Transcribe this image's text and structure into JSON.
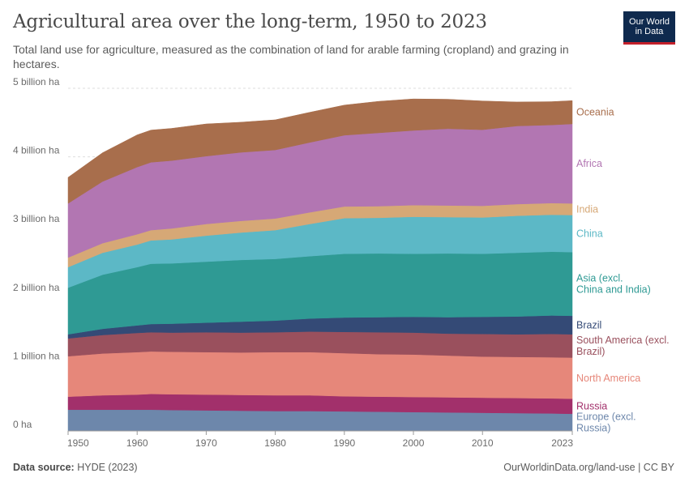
{
  "header": {
    "title": "Agricultural area over the long-term, 1950 to 2023",
    "subtitle": "Total land use for agriculture, measured as the combination of land for arable farming (cropland) and grazing in hectares.",
    "logo_line1": "Our World",
    "logo_line2": "in Data"
  },
  "footer": {
    "source_label": "Data source:",
    "source_value": "HYDE (2023)",
    "url": "OurWorldinData.org/land-use | CC BY"
  },
  "chart_data": {
    "type": "area",
    "stacked": true,
    "x": [
      1950,
      1955,
      1960,
      1962,
      1965,
      1970,
      1975,
      1980,
      1985,
      1990,
      1995,
      2000,
      2005,
      2010,
      2015,
      2020,
      2023
    ],
    "x_ticks": [
      "1950",
      "1960",
      "1970",
      "1980",
      "1990",
      "2000",
      "2010",
      "2023"
    ],
    "y_ticks": [
      "0 ha",
      "1 billion ha",
      "2 billion ha",
      "3 billion ha",
      "4 billion ha",
      "5 billion ha"
    ],
    "ylim": [
      0,
      5
    ],
    "y_unit": "billion ha",
    "grid": "horizontal dashed",
    "legend_position": "right",
    "series": [
      {
        "name": "Europe (excl. Russia)",
        "color": "#6d87ab",
        "values": [
          0.31,
          0.31,
          0.31,
          0.31,
          0.305,
          0.3,
          0.295,
          0.29,
          0.29,
          0.285,
          0.28,
          0.275,
          0.27,
          0.265,
          0.26,
          0.255,
          0.25
        ]
      },
      {
        "name": "Russia",
        "color": "#a2306b",
        "values": [
          0.19,
          0.21,
          0.22,
          0.23,
          0.23,
          0.23,
          0.23,
          0.23,
          0.23,
          0.22,
          0.22,
          0.22,
          0.22,
          0.22,
          0.22,
          0.22,
          0.22
        ]
      },
      {
        "name": "North America",
        "color": "#e6877a",
        "values": [
          0.59,
          0.61,
          0.62,
          0.62,
          0.62,
          0.62,
          0.62,
          0.63,
          0.63,
          0.63,
          0.62,
          0.62,
          0.61,
          0.6,
          0.6,
          0.6,
          0.6
        ]
      },
      {
        "name": "South America (excl. Brazil)",
        "color": "#9a505d",
        "values": [
          0.26,
          0.27,
          0.28,
          0.28,
          0.28,
          0.29,
          0.29,
          0.29,
          0.3,
          0.31,
          0.32,
          0.32,
          0.32,
          0.33,
          0.33,
          0.34,
          0.34
        ]
      },
      {
        "name": "Brazil",
        "color": "#344a76",
        "values": [
          0.06,
          0.09,
          0.11,
          0.12,
          0.13,
          0.14,
          0.16,
          0.17,
          0.19,
          0.21,
          0.22,
          0.23,
          0.24,
          0.25,
          0.26,
          0.27,
          0.27
        ]
      },
      {
        "name": "Asia (excl. China and India)",
        "color": "#2f9a94",
        "values": [
          0.68,
          0.79,
          0.85,
          0.88,
          0.88,
          0.89,
          0.9,
          0.9,
          0.91,
          0.93,
          0.93,
          0.92,
          0.93,
          0.92,
          0.93,
          0.93,
          0.93
        ]
      },
      {
        "name": "China",
        "color": "#5cb8c6",
        "values": [
          0.3,
          0.32,
          0.33,
          0.34,
          0.35,
          0.38,
          0.4,
          0.42,
          0.47,
          0.52,
          0.52,
          0.54,
          0.53,
          0.53,
          0.54,
          0.54,
          0.54
        ]
      },
      {
        "name": "India",
        "color": "#d6a876",
        "values": [
          0.14,
          0.14,
          0.15,
          0.15,
          0.16,
          0.17,
          0.17,
          0.17,
          0.17,
          0.17,
          0.17,
          0.17,
          0.17,
          0.17,
          0.17,
          0.17,
          0.17
        ]
      },
      {
        "name": "Africa",
        "color": "#b276b2",
        "values": [
          0.79,
          0.9,
          0.98,
          0.99,
          0.99,
          0.99,
          1.0,
          1.0,
          1.02,
          1.04,
          1.07,
          1.09,
          1.12,
          1.11,
          1.14,
          1.14,
          1.16
        ]
      },
      {
        "name": "Oceania",
        "color": "#a86e4c",
        "values": [
          0.38,
          0.42,
          0.47,
          0.47,
          0.47,
          0.47,
          0.44,
          0.44,
          0.44,
          0.44,
          0.46,
          0.46,
          0.43,
          0.42,
          0.35,
          0.34,
          0.34
        ]
      }
    ]
  }
}
